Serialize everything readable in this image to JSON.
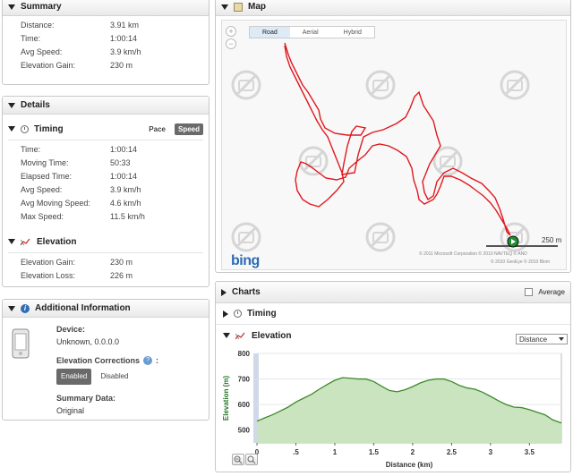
{
  "summary": {
    "title": "Summary",
    "rows": [
      {
        "label": "Distance:",
        "value": "3.91 km"
      },
      {
        "label": "Time:",
        "value": "1:00:14"
      },
      {
        "label": "Avg Speed:",
        "value": "3.9 km/h"
      },
      {
        "label": "Elevation Gain:",
        "value": "230 m"
      }
    ]
  },
  "details": {
    "title": "Details",
    "timing": {
      "title": "Timing",
      "pace_label": "Pace",
      "speed_label": "Speed",
      "rows": [
        {
          "label": "Time:",
          "value": "1:00:14"
        },
        {
          "label": "Moving Time:",
          "value": "50:33"
        },
        {
          "label": "Elapsed Time:",
          "value": "1:00:14"
        },
        {
          "label": "Avg Speed:",
          "value": "3.9 km/h"
        },
        {
          "label": "Avg Moving Speed:",
          "value": "4.6 km/h"
        },
        {
          "label": "Max Speed:",
          "value": "11.5 km/h"
        }
      ]
    },
    "elevation": {
      "title": "Elevation",
      "rows": [
        {
          "label": "Elevation Gain:",
          "value": "230 m"
        },
        {
          "label": "Elevation Loss:",
          "value": "226 m"
        }
      ]
    }
  },
  "additional": {
    "title": "Additional Information",
    "device_label": "Device:",
    "device_value": "Unknown, 0.0.0.0",
    "corrections_label": "Elevation Corrections",
    "enabled_label": "Enabled",
    "disabled_label": "Disabled",
    "summary_data_label": "Summary Data:",
    "summary_data_value": "Original"
  },
  "map": {
    "title": "Map",
    "tabs": [
      "Road",
      "Aerial",
      "Hybrid"
    ],
    "active_tab": "Road",
    "logo": "bing",
    "scale_label": "250 m",
    "copyright_lines": [
      "© 2011 Microsoft Corporation   © 2010 NAVTEQ   © AND",
      "© 2010 GeoEye   © 2010 Blom"
    ]
  },
  "charts": {
    "title": "Charts",
    "average_label": "Average",
    "timing_label": "Timing",
    "elevation_label": "Elevation",
    "xaxis_select": "Distance"
  },
  "chart_data": {
    "type": "area",
    "xlabel": "Distance (km)",
    "ylabel": "Elevation (m)",
    "xlim": [
      0,
      3.91
    ],
    "ylim": [
      450,
      800
    ],
    "xticks": [
      "0",
      ".5",
      "1",
      "1.5",
      "2",
      "2.5",
      "3",
      "3.5"
    ],
    "xtick_values": [
      0,
      0.5,
      1,
      1.5,
      2,
      2.5,
      3,
      3.5
    ],
    "yticks": [
      500,
      600,
      700,
      800
    ],
    "x": [
      0,
      0.1,
      0.2,
      0.3,
      0.4,
      0.5,
      0.6,
      0.7,
      0.8,
      0.9,
      1.0,
      1.1,
      1.2,
      1.3,
      1.4,
      1.5,
      1.6,
      1.7,
      1.8,
      1.9,
      2.0,
      2.1,
      2.2,
      2.3,
      2.4,
      2.5,
      2.6,
      2.7,
      2.8,
      2.9,
      3.0,
      3.1,
      3.2,
      3.3,
      3.4,
      3.5,
      3.6,
      3.7,
      3.8,
      3.91
    ],
    "y": [
      535,
      548,
      560,
      575,
      590,
      610,
      625,
      640,
      660,
      678,
      695,
      705,
      703,
      700,
      700,
      690,
      672,
      655,
      650,
      658,
      670,
      685,
      695,
      700,
      700,
      690,
      675,
      665,
      660,
      648,
      632,
      615,
      600,
      590,
      588,
      580,
      570,
      560,
      540,
      528
    ],
    "fill_color": "#c9e4bf",
    "line_color": "#3e8a2a"
  }
}
